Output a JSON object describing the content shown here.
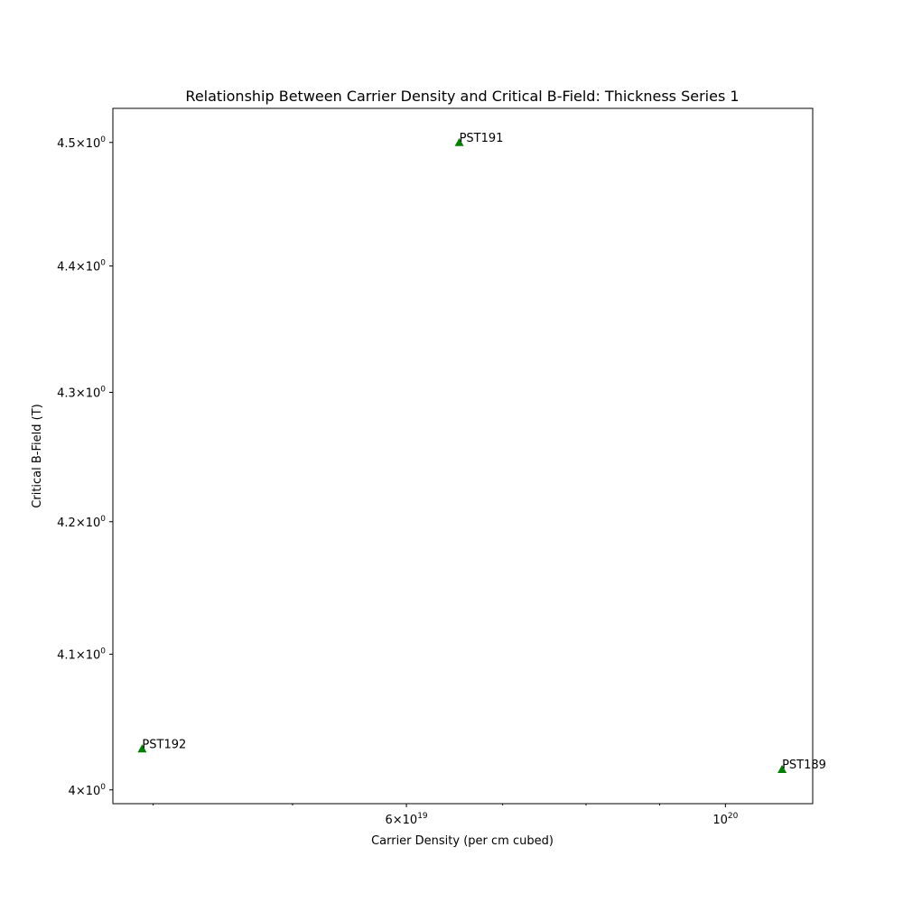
{
  "chart_data": {
    "type": "scatter",
    "title": "Relationship Between Carrier Density and Critical B-Field: Thickness Series 1",
    "xlabel": "Carrier Density (per cm cubed)",
    "ylabel": "Critical B-Field (T)",
    "xscale": "log",
    "yscale": "log",
    "xlim": [
      3.75e+19,
      1.15e+20
    ],
    "ylim": [
      3.99,
      4.528
    ],
    "grid": false,
    "marker": "triangle-up",
    "color": "#008000",
    "points": [
      {
        "label": "PST192",
        "x": 3.93e+19,
        "y": 4.03
      },
      {
        "label": "PST191",
        "x": 6.53e+19,
        "y": 4.5
      },
      {
        "label": "PST189",
        "x": 1.095e+20,
        "y": 4.015
      }
    ],
    "x_ticks": [
      {
        "value": 6e+19,
        "mantissa": "6",
        "base": "10",
        "exponent": "19"
      },
      {
        "value": 1e+20,
        "mantissa": "",
        "base": "10",
        "exponent": "20"
      }
    ],
    "x_minor_ticks": [
      4e+19,
      5e+19,
      7e+19,
      8e+19,
      9e+19
    ],
    "y_ticks": [
      {
        "value": 4.0,
        "mantissa": "4",
        "base": "10",
        "exponent": "0"
      },
      {
        "value": 4.1,
        "mantissa": "4.1",
        "base": "10",
        "exponent": "0"
      },
      {
        "value": 4.2,
        "mantissa": "4.2",
        "base": "10",
        "exponent": "0"
      },
      {
        "value": 4.3,
        "mantissa": "4.3",
        "base": "10",
        "exponent": "0"
      },
      {
        "value": 4.4,
        "mantissa": "4.4",
        "base": "10",
        "exponent": "0"
      },
      {
        "value": 4.5,
        "mantissa": "4.5",
        "base": "10",
        "exponent": "0"
      }
    ]
  }
}
